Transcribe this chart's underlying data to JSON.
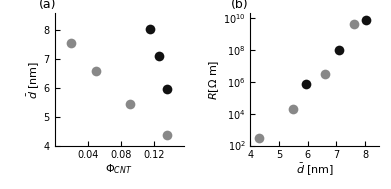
{
  "panel_a": {
    "gray_x": [
      0.02,
      0.05,
      0.09,
      0.135
    ],
    "gray_y": [
      7.55,
      6.6,
      5.45,
      4.35
    ],
    "black_x": [
      0.115,
      0.125,
      0.135
    ],
    "black_y": [
      8.05,
      7.1,
      5.95
    ],
    "xlabel": "$\\it{\\Phi}_{CNT}$",
    "ylabel": "$\\bar{d}$ [nm]",
    "xlim": [
      0,
      0.155
    ],
    "ylim": [
      4,
      8.6
    ],
    "xticks": [
      0.04,
      0.08,
      0.12
    ],
    "yticks": [
      4,
      5,
      6,
      7,
      8
    ],
    "label": "(a)"
  },
  "panel_b": {
    "gray_x": [
      4.3,
      5.5,
      6.6,
      7.6
    ],
    "gray_y": [
      300.0,
      20000.0,
      3000000.0,
      4000000000.0
    ],
    "black_x": [
      5.95,
      7.1,
      8.05
    ],
    "black_y": [
      700000.0,
      100000000.0,
      8000000000.0
    ],
    "xlabel": "$\\bar{d}$ [nm]",
    "ylabel": "$R$[$\\Omega$ m]",
    "xlim": [
      4,
      8.5
    ],
    "ylim": [
      100.0,
      20000000000.0
    ],
    "xticks": [
      4,
      5,
      6,
      7,
      8
    ],
    "yticks": [
      100.0,
      10000.0,
      1000000.0,
      100000000.0,
      10000000000.0
    ],
    "label": "(b)"
  },
  "gray_color": "#888888",
  "black_color": "#111111",
  "marker_size": 7
}
